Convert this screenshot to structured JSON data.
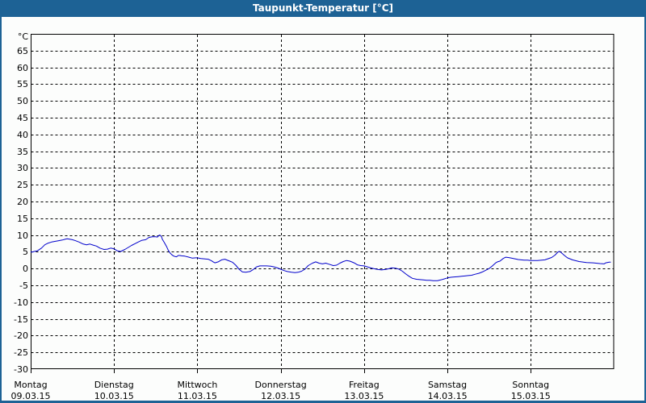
{
  "window": {
    "title": "Taupunkt-Temperatur [°C]"
  },
  "colors": {
    "titlebar_bg": "#1d6295",
    "titlebar_text": "#ffffff",
    "frame_border": "#1d6295",
    "background": "#fcfdfc",
    "plot_border": "#000000",
    "grid_line": "#000000",
    "tick_text": "#000000",
    "series_line": "#0000cc"
  },
  "chart_data": {
    "type": "line",
    "title": "Taupunkt-Temperatur [°C]",
    "y_unit_label": "°C",
    "ylim": [
      -30,
      70
    ],
    "y_tick_step": 5,
    "y_ticks": [
      65,
      60,
      55,
      50,
      45,
      40,
      35,
      30,
      25,
      20,
      15,
      10,
      5,
      0,
      -5,
      -10,
      -15,
      -20,
      -25,
      -30
    ],
    "grid": "dashed",
    "legend": "none",
    "x_axis": {
      "days": [
        {
          "name": "Montag",
          "date": "09.03.15"
        },
        {
          "name": "Dienstag",
          "date": "10.03.15"
        },
        {
          "name": "Mittwoch",
          "date": "11.03.15"
        },
        {
          "name": "Donnerstag",
          "date": "12.03.15"
        },
        {
          "name": "Freitag",
          "date": "13.03.15"
        },
        {
          "name": "Samstag",
          "date": "14.03.15"
        },
        {
          "name": "Sonntag",
          "date": "15.03.15"
        }
      ]
    },
    "series": [
      {
        "name": "Taupunkt-Temperatur",
        "color": "#0000cc",
        "points_days_degC": [
          [
            0.0,
            5.0
          ],
          [
            0.02,
            4.9
          ],
          [
            0.04,
            5.1
          ],
          [
            0.08,
            5.3
          ],
          [
            0.13,
            6.1
          ],
          [
            0.17,
            7.1
          ],
          [
            0.21,
            7.6
          ],
          [
            0.25,
            7.9
          ],
          [
            0.29,
            8.1
          ],
          [
            0.33,
            8.3
          ],
          [
            0.38,
            8.5
          ],
          [
            0.42,
            8.8
          ],
          [
            0.44,
            8.9
          ],
          [
            0.48,
            8.7
          ],
          [
            0.5,
            8.6
          ],
          [
            0.54,
            8.3
          ],
          [
            0.58,
            7.9
          ],
          [
            0.63,
            7.3
          ],
          [
            0.67,
            7.1
          ],
          [
            0.71,
            7.3
          ],
          [
            0.75,
            7.0
          ],
          [
            0.79,
            6.7
          ],
          [
            0.83,
            6.1
          ],
          [
            0.88,
            5.7
          ],
          [
            0.92,
            5.8
          ],
          [
            0.96,
            6.1
          ],
          [
            1.0,
            5.9
          ],
          [
            1.04,
            5.3
          ],
          [
            1.08,
            5.1
          ],
          [
            1.13,
            5.7
          ],
          [
            1.17,
            6.3
          ],
          [
            1.21,
            6.9
          ],
          [
            1.25,
            7.4
          ],
          [
            1.29,
            7.9
          ],
          [
            1.33,
            8.4
          ],
          [
            1.38,
            8.6
          ],
          [
            1.42,
            9.3
          ],
          [
            1.46,
            9.5
          ],
          [
            1.5,
            9.5
          ],
          [
            1.52,
            9.4
          ],
          [
            1.54,
            9.9
          ],
          [
            1.55,
            10.0
          ],
          [
            1.57,
            9.5
          ],
          [
            1.58,
            8.7
          ],
          [
            1.6,
            7.9
          ],
          [
            1.63,
            6.6
          ],
          [
            1.65,
            5.5
          ],
          [
            1.67,
            4.7
          ],
          [
            1.69,
            4.2
          ],
          [
            1.71,
            3.8
          ],
          [
            1.73,
            3.6
          ],
          [
            1.75,
            3.5
          ],
          [
            1.77,
            3.9
          ],
          [
            1.79,
            3.9
          ],
          [
            1.81,
            3.8
          ],
          [
            1.85,
            3.7
          ],
          [
            1.9,
            3.4
          ],
          [
            1.94,
            3.1
          ],
          [
            1.98,
            3.2
          ],
          [
            2.0,
            3.2
          ],
          [
            2.04,
            3.0
          ],
          [
            2.08,
            2.9
          ],
          [
            2.13,
            2.8
          ],
          [
            2.17,
            2.3
          ],
          [
            2.19,
            2.0
          ],
          [
            2.21,
            1.7
          ],
          [
            2.25,
            2.0
          ],
          [
            2.29,
            2.6
          ],
          [
            2.33,
            2.8
          ],
          [
            2.38,
            2.3
          ],
          [
            2.42,
            1.9
          ],
          [
            2.46,
            1.0
          ],
          [
            2.5,
            -0.2
          ],
          [
            2.54,
            -1.0
          ],
          [
            2.58,
            -1.1
          ],
          [
            2.63,
            -0.9
          ],
          [
            2.67,
            -0.3
          ],
          [
            2.71,
            0.5
          ],
          [
            2.75,
            0.8
          ],
          [
            2.79,
            0.8
          ],
          [
            2.83,
            0.8
          ],
          [
            2.88,
            0.7
          ],
          [
            2.92,
            0.5
          ],
          [
            2.96,
            0.2
          ],
          [
            3.0,
            -0.2
          ],
          [
            3.04,
            -0.6
          ],
          [
            3.08,
            -0.9
          ],
          [
            3.13,
            -1.1
          ],
          [
            3.17,
            -1.2
          ],
          [
            3.21,
            -1.1
          ],
          [
            3.25,
            -0.8
          ],
          [
            3.29,
            -0.2
          ],
          [
            3.33,
            0.9
          ],
          [
            3.38,
            1.6
          ],
          [
            3.42,
            2.0
          ],
          [
            3.46,
            1.6
          ],
          [
            3.5,
            1.4
          ],
          [
            3.54,
            1.6
          ],
          [
            3.58,
            1.3
          ],
          [
            3.63,
            0.9
          ],
          [
            3.67,
            1.0
          ],
          [
            3.71,
            1.6
          ],
          [
            3.75,
            2.1
          ],
          [
            3.79,
            2.4
          ],
          [
            3.83,
            2.2
          ],
          [
            3.88,
            1.7
          ],
          [
            3.92,
            1.1
          ],
          [
            3.96,
            0.9
          ],
          [
            4.0,
            0.8
          ],
          [
            4.04,
            0.5
          ],
          [
            4.08,
            0.2
          ],
          [
            4.13,
            -0.1
          ],
          [
            4.17,
            -0.3
          ],
          [
            4.21,
            -0.4
          ],
          [
            4.25,
            -0.3
          ],
          [
            4.29,
            -0.1
          ],
          [
            4.33,
            0.2
          ],
          [
            4.38,
            0.1
          ],
          [
            4.42,
            -0.2
          ],
          [
            4.46,
            -0.8
          ],
          [
            4.5,
            -1.6
          ],
          [
            4.54,
            -2.3
          ],
          [
            4.58,
            -2.9
          ],
          [
            4.63,
            -3.2
          ],
          [
            4.67,
            -3.3
          ],
          [
            4.71,
            -3.4
          ],
          [
            4.75,
            -3.5
          ],
          [
            4.79,
            -3.5
          ],
          [
            4.83,
            -3.6
          ],
          [
            4.88,
            -3.6
          ],
          [
            4.92,
            -3.4
          ],
          [
            4.96,
            -3.1
          ],
          [
            5.0,
            -2.8
          ],
          [
            5.04,
            -2.6
          ],
          [
            5.08,
            -2.5
          ],
          [
            5.13,
            -2.4
          ],
          [
            5.17,
            -2.3
          ],
          [
            5.21,
            -2.2
          ],
          [
            5.25,
            -2.1
          ],
          [
            5.29,
            -2.0
          ],
          [
            5.33,
            -1.7
          ],
          [
            5.38,
            -1.4
          ],
          [
            5.42,
            -1.0
          ],
          [
            5.46,
            -0.5
          ],
          [
            5.5,
            0.0
          ],
          [
            5.54,
            0.8
          ],
          [
            5.58,
            1.7
          ],
          [
            5.6,
            2.0
          ],
          [
            5.63,
            2.2
          ],
          [
            5.67,
            3.0
          ],
          [
            5.7,
            3.4
          ],
          [
            5.73,
            3.3
          ],
          [
            5.77,
            3.1
          ],
          [
            5.81,
            2.9
          ],
          [
            5.85,
            2.7
          ],
          [
            5.92,
            2.5
          ],
          [
            5.96,
            2.5
          ],
          [
            6.0,
            2.4
          ],
          [
            6.08,
            2.4
          ],
          [
            6.17,
            2.6
          ],
          [
            6.25,
            3.3
          ],
          [
            6.29,
            4.0
          ],
          [
            6.33,
            5.0
          ],
          [
            6.35,
            5.1
          ],
          [
            6.4,
            4.0
          ],
          [
            6.44,
            3.2
          ],
          [
            6.5,
            2.6
          ],
          [
            6.58,
            2.1
          ],
          [
            6.67,
            1.8
          ],
          [
            6.75,
            1.7
          ],
          [
            6.83,
            1.5
          ],
          [
            6.88,
            1.4
          ],
          [
            6.9,
            1.7
          ],
          [
            6.94,
            1.9
          ],
          [
            6.96,
            1.9
          ]
        ]
      }
    ]
  }
}
